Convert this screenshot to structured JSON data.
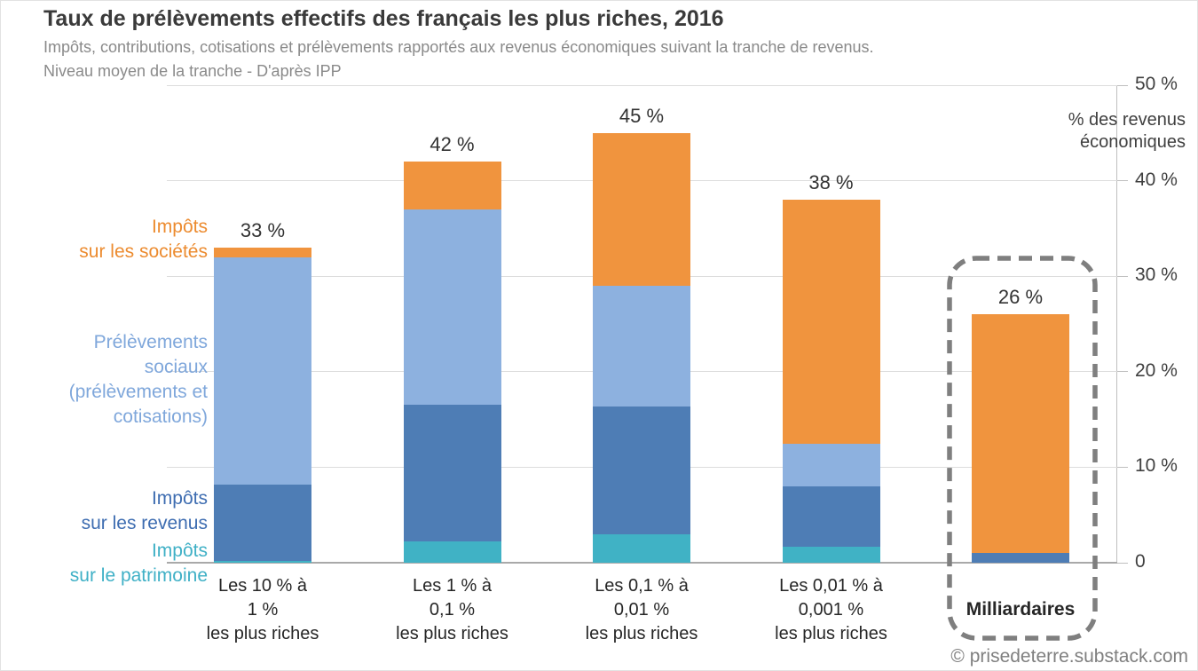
{
  "header": {
    "title": "Taux de prélèvements effectifs des français les plus riches, 2016",
    "subtitle_line1": "Impôts, contributions, cotisations et prélèvements rapportés aux revenus économiques suivant la tranche de revenus.",
    "subtitle_line2": "Niveau moyen de la tranche - D'après IPP"
  },
  "chart_data": {
    "type": "bar",
    "stacked": true,
    "title": "Taux de prélèvements effectifs des français les plus riches, 2016",
    "ylabel": "% des revenus économiques",
    "ylim": [
      0,
      50
    ],
    "grid": true,
    "yticks": [
      {
        "value": 0,
        "label": "0"
      },
      {
        "value": 10,
        "label": "10 %"
      },
      {
        "value": 20,
        "label": "20 %"
      },
      {
        "value": 30,
        "label": "30 %"
      },
      {
        "value": 40,
        "label": "40 %"
      },
      {
        "value": 50,
        "label": "50 %"
      }
    ],
    "categories": [
      {
        "lines": [
          "Les 10 % à",
          "1 %",
          "les plus riches"
        ],
        "total_label": "33 %",
        "total": 33
      },
      {
        "lines": [
          "Les 1 % à",
          "0,1 %",
          "les plus riches"
        ],
        "total_label": "42 %",
        "total": 42
      },
      {
        "lines": [
          "Les 0,1 % à",
          "0,01 %",
          "les plus riches"
        ],
        "total_label": "45 %",
        "total": 45
      },
      {
        "lines": [
          "Les 0,01 % à",
          "0,001 %",
          "les plus riches"
        ],
        "total_label": "38 %",
        "total": 38
      },
      {
        "lines": [
          "Milliardaires"
        ],
        "total_label": "26 %",
        "total": 26
      }
    ],
    "series": [
      {
        "name": "Impôts sur le patrimoine",
        "color": "#40B2C5",
        "values": [
          0.2,
          2.2,
          3.0,
          1.7,
          0
        ]
      },
      {
        "name": "Impôts sur les revenus",
        "color": "#4E7DB5",
        "values": [
          8.0,
          14.3,
          13.4,
          6.3,
          1.0
        ]
      },
      {
        "name": "Prélèvements sociaux (prélèvements et cotisations)",
        "color": "#8DB1DF",
        "values": [
          23.8,
          20.5,
          12.6,
          4.5,
          0
        ]
      },
      {
        "name": "Impôts sur les sociétés",
        "color": "#F0943E",
        "values": [
          1.0,
          5.0,
          16.0,
          25.5,
          25.0
        ]
      }
    ],
    "highlight": {
      "category": "Milliardaires",
      "style": "dashed-rounded-box",
      "color": "#7f7f7f"
    }
  },
  "legend": {
    "items": [
      {
        "key": "societes",
        "lines": [
          "Impôts",
          "sur les sociétés"
        ],
        "color": "#EC8B2F"
      },
      {
        "key": "sociaux",
        "lines": [
          "Prélèvements",
          "sociaux",
          "(prélèvements et",
          "cotisations)"
        ],
        "color": "#7FA7DB"
      },
      {
        "key": "revenus",
        "lines": [
          "Impôts",
          "sur les revenus"
        ],
        "color": "#3E6DB1"
      },
      {
        "key": "patrimoine",
        "lines": [
          "Impôts",
          "sur le patrimoine"
        ],
        "color": "#3FB0C6"
      }
    ]
  },
  "axis": {
    "right_axis_title": "% des revenus économiques"
  },
  "footer": {
    "copyright": "© prisedeterre.substack.com"
  }
}
